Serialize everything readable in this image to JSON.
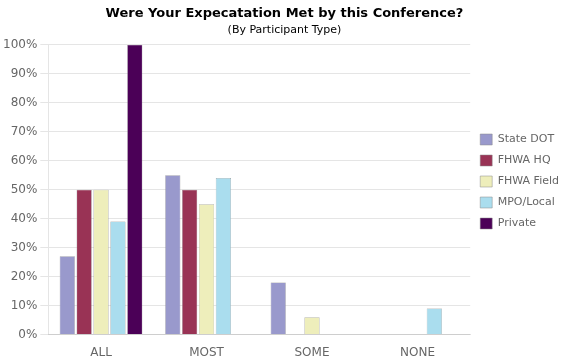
{
  "chart_data": {
    "type": "bar",
    "title": "Were Your Expecatation Met by this Conference?",
    "subtitle": "(By Participant Type)",
    "categories": [
      "ALL",
      "MOST",
      "SOME",
      "NONE"
    ],
    "series": [
      {
        "name": "State DOT",
        "color": "#9999cc",
        "values": [
          27,
          55,
          18,
          0
        ]
      },
      {
        "name": "FHWA HQ",
        "color": "#993355",
        "values": [
          50,
          50,
          0,
          0
        ]
      },
      {
        "name": "FHWA Field",
        "color": "#eeeebb",
        "values": [
          50,
          45,
          6,
          0
        ]
      },
      {
        "name": "MPO/Local",
        "color": "#aaddee",
        "values": [
          39,
          54,
          0,
          9
        ]
      },
      {
        "name": "Private",
        "color": "#4b0057",
        "values": [
          100,
          0,
          0,
          0
        ]
      }
    ],
    "ylim": [
      0,
      100
    ],
    "yticks": [
      {
        "value": 0,
        "label": "0%"
      },
      {
        "value": 10,
        "label": "10%"
      },
      {
        "value": 20,
        "label": "20%"
      },
      {
        "value": 30,
        "label": "30%"
      },
      {
        "value": 40,
        "label": "40%"
      },
      {
        "value": 50,
        "label": "50%"
      },
      {
        "value": 60,
        "label": "60%"
      },
      {
        "value": 70,
        "label": "70%"
      },
      {
        "value": 80,
        "label": "80%"
      },
      {
        "value": 90,
        "label": "90%"
      },
      {
        "value": 100,
        "label": "100%"
      }
    ],
    "grid": true,
    "legend": "right"
  }
}
